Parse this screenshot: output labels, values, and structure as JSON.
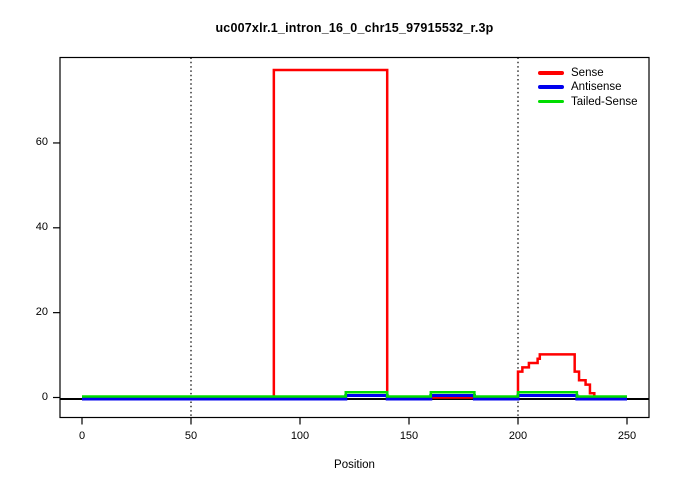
{
  "page": {
    "background": "#FFFFFF"
  },
  "chart_data": {
    "type": "line",
    "subtype": "step-coverage",
    "title": "uc007xlr.1_intron_16_0_chr15_97915532_r.3p",
    "xlabel": "Position",
    "ylabel": "",
    "x_ticks": [
      0,
      50,
      100,
      150,
      200,
      250
    ],
    "y_ticks": [
      0,
      20,
      40,
      60
    ],
    "xlim": [
      -10,
      260
    ],
    "ylim": [
      -4,
      80
    ],
    "grid": false,
    "legend_position": "topright",
    "legend_border": false,
    "hline_solid_y": 0,
    "vlines_dotted_x": [
      50,
      200
    ],
    "axis_color": "#000000",
    "series": [
      {
        "name": "Sense",
        "color": "#FF0000",
        "steps": [
          [
            0,
            88,
            0
          ],
          [
            88,
            140,
            76
          ],
          [
            140,
            200,
            0
          ],
          [
            200,
            202,
            6
          ],
          [
            202,
            205,
            7
          ],
          [
            205,
            209,
            8
          ],
          [
            209,
            210,
            9
          ],
          [
            210,
            226,
            10
          ],
          [
            226,
            228,
            6
          ],
          [
            228,
            231,
            4
          ],
          [
            231,
            233,
            3
          ],
          [
            233,
            235,
            1
          ],
          [
            235,
            250,
            0
          ]
        ]
      },
      {
        "name": "Antisense",
        "color": "#0000EE",
        "steps": [
          [
            0,
            121,
            0
          ],
          [
            121,
            140,
            1
          ],
          [
            140,
            160,
            0
          ],
          [
            160,
            180,
            1
          ],
          [
            180,
            200,
            0
          ],
          [
            200,
            227,
            1
          ],
          [
            227,
            250,
            0
          ]
        ]
      },
      {
        "name": "Tailed-Sense",
        "color": "#00DD00",
        "steps": [
          [
            0,
            121,
            0
          ],
          [
            121,
            140,
            1
          ],
          [
            140,
            160,
            0
          ],
          [
            160,
            180,
            1
          ],
          [
            180,
            200,
            0
          ],
          [
            200,
            227,
            1
          ],
          [
            227,
            250,
            0
          ]
        ]
      }
    ]
  }
}
